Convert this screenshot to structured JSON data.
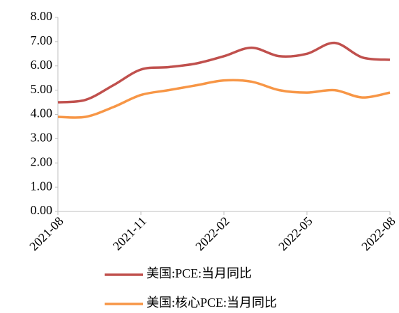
{
  "chart_data": {
    "type": "line",
    "categories": [
      "2021-08",
      null,
      null,
      "2021-11",
      null,
      null,
      "2022-02",
      null,
      null,
      "2022-05",
      null,
      null,
      "2022-08"
    ],
    "series": [
      {
        "name": "美国:PCE:当月同比",
        "color": "#c0504d",
        "values": [
          4.5,
          4.6,
          5.2,
          5.85,
          5.95,
          6.1,
          6.4,
          6.75,
          6.4,
          6.5,
          6.95,
          6.35,
          6.25
        ]
      },
      {
        "name": "美国:核心PCE:当月同比",
        "color": "#f79646",
        "values": [
          3.9,
          3.9,
          4.3,
          4.8,
          5.0,
          5.2,
          5.4,
          5.35,
          5.0,
          4.9,
          5.0,
          4.7,
          4.9
        ]
      }
    ],
    "ylim": [
      0,
      8
    ],
    "yticks": [
      {
        "value": 0,
        "label": "0.00"
      },
      {
        "value": 1,
        "label": "1.00"
      },
      {
        "value": 2,
        "label": "2.00"
      },
      {
        "value": 3,
        "label": "3.00"
      },
      {
        "value": 4,
        "label": "4.00"
      },
      {
        "value": 5,
        "label": "5.00"
      },
      {
        "value": 6,
        "label": "6.00"
      },
      {
        "value": 7,
        "label": "7.00"
      },
      {
        "value": 8,
        "label": "8.00"
      }
    ],
    "grid": false,
    "legend": "bottom"
  }
}
